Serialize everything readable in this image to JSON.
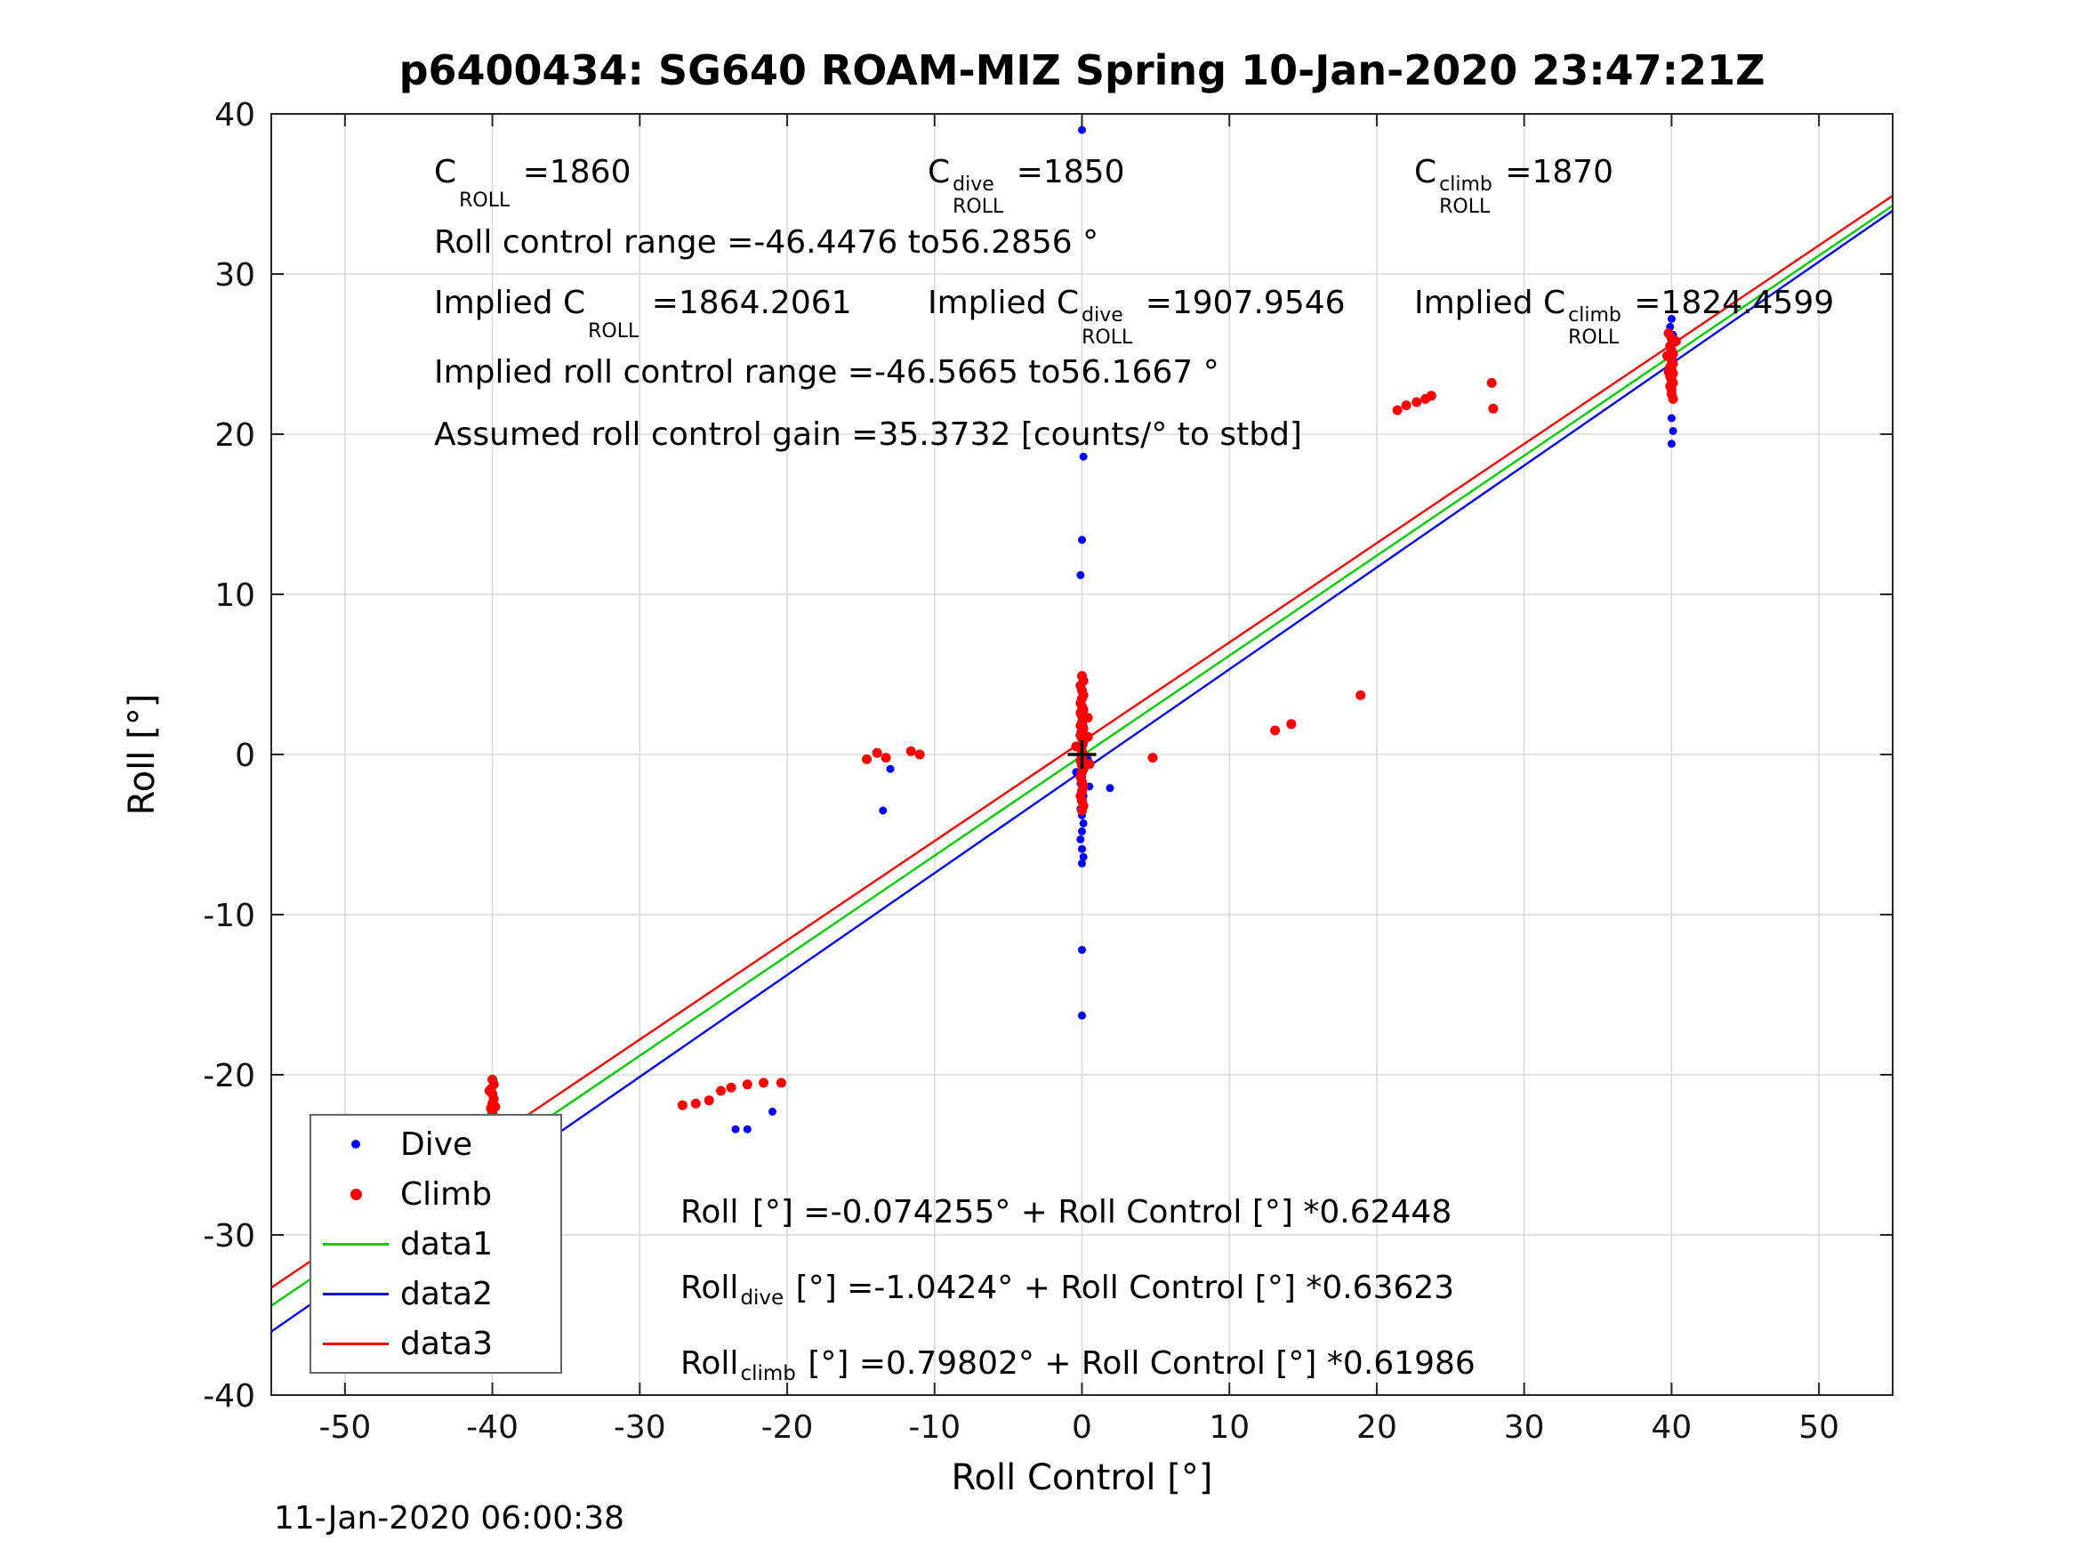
{
  "figure": {
    "title": "p6400434: SG640 ROAM-MIZ Spring 10-Jan-2020 23:47:21Z",
    "timestamp": "11-Jan-2020 06:00:38"
  },
  "annotations": {
    "row1": [
      {
        "pre": "C",
        "sup": "",
        "sub": "ROLL",
        "post": " =1860"
      },
      {
        "pre": "C",
        "sup": "dive",
        "sub": "ROLL",
        "post": " =1850"
      },
      {
        "pre": "C",
        "sup": "climb",
        "sub": "ROLL",
        "post": " =1870"
      }
    ],
    "row2": "Roll control range =-46.4476 to56.2856 °",
    "row3": [
      {
        "pre": "Implied C",
        "sup": "",
        "sub": "ROLL",
        "post": " =1864.2061"
      },
      {
        "pre": "Implied C",
        "sup": "dive",
        "sub": "ROLL",
        "post": " =1907.9546"
      },
      {
        "pre": "Implied C",
        "sup": "climb",
        "sub": "ROLL",
        "post": " =1824.4599"
      }
    ],
    "row4": "Implied roll control range =-46.5665 to56.1667 °",
    "row5": "Assumed roll control gain =35.3732 [counts/° to stbd]"
  },
  "equations": [
    {
      "pre": "Roll",
      "sub": "",
      "post": " [°] =-0.074255° + Roll Control [°] *0.62448"
    },
    {
      "pre": "Roll",
      "sub": "dive",
      "post": " [°] =-1.0424° + Roll Control [°] *0.63623"
    },
    {
      "pre": "Roll",
      "sub": "climb",
      "post": " [°] =0.79802° + Roll Control [°] *0.61986"
    }
  ],
  "legend": {
    "items": [
      {
        "label": "Dive",
        "marker": "dot",
        "color": "#0000ff",
        "size": 10
      },
      {
        "label": "Climb",
        "marker": "dot",
        "color": "#ff0000",
        "size": 13
      },
      {
        "label": "data1",
        "marker": "line",
        "color": "#00cc00",
        "size": 3
      },
      {
        "label": "data2",
        "marker": "line",
        "color": "#0000ff",
        "size": 3
      },
      {
        "label": "data3",
        "marker": "line",
        "color": "#ff0000",
        "size": 3
      }
    ]
  },
  "colors": {
    "dive": "#0000ff",
    "climb": "#ff0000",
    "data1": "#00cc00",
    "data2": "#0000ff",
    "data3": "#ff0000",
    "grid": "#d8d8d8",
    "axis": "#262626",
    "tick_label": "#141414"
  },
  "chart_data": {
    "type": "scatter",
    "title": "p6400434: SG640 ROAM-MIZ Spring 10-Jan-2020 23:47:21Z",
    "xlabel": "Roll Control [°]",
    "ylabel": "Roll [°]",
    "xlim": [
      -55,
      55
    ],
    "ylim": [
      -40,
      40
    ],
    "xticks": [
      -50,
      -40,
      -30,
      -20,
      -10,
      0,
      10,
      20,
      30,
      40,
      50
    ],
    "yticks": [
      -40,
      -30,
      -20,
      -10,
      0,
      10,
      20,
      30,
      40
    ],
    "grid": true,
    "legend_position": "bottom-left",
    "origin_marker": {
      "x": 0,
      "y": 0,
      "type": "plus",
      "color": "#000000"
    },
    "series": [
      {
        "name": "Dive",
        "type": "scatter",
        "color": "#0000ff",
        "marker_radius": 4.5,
        "points": [
          [
            -40,
            -21.2
          ],
          [
            -39.9,
            -21.7
          ],
          [
            -40.1,
            -22.1
          ],
          [
            -40,
            -22.5
          ],
          [
            -39.9,
            -22.9
          ],
          [
            -40,
            -23.3
          ],
          [
            -40.1,
            -23.7
          ],
          [
            -40,
            -24.1
          ],
          [
            -39.9,
            -24.5
          ],
          [
            -40,
            -24.9
          ],
          [
            -40.1,
            -25.3
          ],
          [
            -40,
            -25.7
          ],
          [
            -39.9,
            -26.1
          ],
          [
            -40,
            -26.5
          ],
          [
            -40,
            -26.9
          ],
          [
            -23.5,
            -23.4
          ],
          [
            -22.7,
            -23.4
          ],
          [
            -21.0,
            -22.3
          ],
          [
            -13.5,
            -3.5
          ],
          [
            -13.0,
            -0.9
          ],
          [
            0,
            39
          ],
          [
            0.1,
            18.6
          ],
          [
            0,
            13.4
          ],
          [
            -0.1,
            11.2
          ],
          [
            0,
            2.2
          ],
          [
            0.1,
            1.8
          ],
          [
            -0.1,
            1.4
          ],
          [
            0,
            1.0
          ],
          [
            0.1,
            0.6
          ],
          [
            0,
            0.2
          ],
          [
            -0.1,
            -0.2
          ],
          [
            0,
            -0.6
          ],
          [
            0.1,
            -1.0
          ],
          [
            0,
            -1.4
          ],
          [
            -0.1,
            -1.8
          ],
          [
            0,
            -2.2
          ],
          [
            0.1,
            -2.6
          ],
          [
            0,
            -3.0
          ],
          [
            -0.1,
            -3.4
          ],
          [
            0,
            -3.8
          ],
          [
            0.1,
            -4.3
          ],
          [
            0,
            -4.8
          ],
          [
            -0.1,
            -5.3
          ],
          [
            0,
            -5.9
          ],
          [
            0.1,
            -6.4
          ],
          [
            0,
            -6.8
          ],
          [
            0.4,
            -0.3
          ],
          [
            -0.4,
            -1.1
          ],
          [
            0.5,
            -2.0
          ],
          [
            1.9,
            -2.1
          ],
          [
            0,
            -12.2
          ],
          [
            0,
            -16.3
          ],
          [
            40,
            27.2
          ],
          [
            39.9,
            26.7
          ],
          [
            40.1,
            26.2
          ],
          [
            40,
            25.8
          ],
          [
            39.9,
            25.4
          ],
          [
            40,
            25.0
          ],
          [
            40.1,
            24.6
          ],
          [
            40,
            24.2
          ],
          [
            39.9,
            23.8
          ],
          [
            40,
            23.4
          ],
          [
            40,
            21.0
          ],
          [
            40.1,
            20.2
          ],
          [
            40,
            19.4
          ]
        ]
      },
      {
        "name": "Climb",
        "type": "scatter",
        "color": "#ff0000",
        "marker_radius": 5.5,
        "points": [
          [
            -40,
            -20.3
          ],
          [
            -39.9,
            -20.6
          ],
          [
            -40.1,
            -20.9
          ],
          [
            -40,
            -21.2
          ],
          [
            -39.9,
            -21.5
          ],
          [
            -40,
            -21.8
          ],
          [
            -40.1,
            -22.1
          ],
          [
            -40,
            -22.4
          ],
          [
            -39.9,
            -22.7
          ],
          [
            -40,
            -23.0
          ],
          [
            -40.1,
            -23.3
          ],
          [
            -40,
            -23.7
          ],
          [
            -40,
            -24.0
          ],
          [
            -40.2,
            -21.0
          ],
          [
            -39.8,
            -22.0
          ],
          [
            -27.1,
            -21.9
          ],
          [
            -26.2,
            -21.8
          ],
          [
            -25.3,
            -21.6
          ],
          [
            -24.5,
            -21.0
          ],
          [
            -23.8,
            -20.8
          ],
          [
            -22.7,
            -20.6
          ],
          [
            -21.6,
            -20.5
          ],
          [
            -20.4,
            -20.5
          ],
          [
            -14.6,
            -0.3
          ],
          [
            -13.9,
            0.1
          ],
          [
            -13.3,
            -0.2
          ],
          [
            -11.6,
            0.2
          ],
          [
            -11.0,
            0.0
          ],
          [
            0,
            4.9
          ],
          [
            0.1,
            4.6
          ],
          [
            -0.1,
            4.3
          ],
          [
            0,
            4.0
          ],
          [
            0.1,
            3.7
          ],
          [
            0,
            3.5
          ],
          [
            -0.1,
            3.2
          ],
          [
            0,
            3.0
          ],
          [
            0.1,
            2.8
          ],
          [
            -0.1,
            2.6
          ],
          [
            0,
            2.4
          ],
          [
            0.1,
            2.2
          ],
          [
            0,
            2.0
          ],
          [
            -0.1,
            1.8
          ],
          [
            0.1,
            1.6
          ],
          [
            0,
            1.4
          ],
          [
            -0.1,
            1.2
          ],
          [
            0,
            1.0
          ],
          [
            0.1,
            0.8
          ],
          [
            0,
            0.6
          ],
          [
            -0.1,
            0.4
          ],
          [
            0,
            0.2
          ],
          [
            0.1,
            0.0
          ],
          [
            0,
            -0.2
          ],
          [
            -0.1,
            -0.4
          ],
          [
            0,
            -0.7
          ],
          [
            0.1,
            -0.9
          ],
          [
            0,
            -1.1
          ],
          [
            -0.1,
            -1.4
          ],
          [
            0,
            -1.7
          ],
          [
            0.1,
            -2.0
          ],
          [
            0,
            -2.3
          ],
          [
            -0.1,
            -2.6
          ],
          [
            0,
            -2.9
          ],
          [
            0.1,
            -3.2
          ],
          [
            0,
            -3.5
          ],
          [
            0.4,
            1.1
          ],
          [
            -0.4,
            0.5
          ],
          [
            0.5,
            -0.6
          ],
          [
            0.4,
            2.3
          ],
          [
            4.8,
            -0.2
          ],
          [
            13.1,
            1.5
          ],
          [
            14.2,
            1.9
          ],
          [
            18.9,
            3.7
          ],
          [
            21.4,
            21.5
          ],
          [
            22.0,
            21.8
          ],
          [
            22.7,
            22.0
          ],
          [
            23.3,
            22.2
          ],
          [
            23.7,
            22.4
          ],
          [
            27.8,
            23.2
          ],
          [
            27.9,
            21.6
          ],
          [
            39.8,
            26.3
          ],
          [
            40,
            26.0
          ],
          [
            40.1,
            25.7
          ],
          [
            39.9,
            25.5
          ],
          [
            40,
            25.2
          ],
          [
            40.1,
            25.0
          ],
          [
            39.9,
            24.8
          ],
          [
            40,
            24.6
          ],
          [
            40.1,
            24.4
          ],
          [
            39.9,
            24.2
          ],
          [
            40,
            24.0
          ],
          [
            40.1,
            23.8
          ],
          [
            39.9,
            23.6
          ],
          [
            40,
            23.4
          ],
          [
            40.1,
            23.2
          ],
          [
            39.9,
            23.0
          ],
          [
            40,
            22.8
          ],
          [
            40,
            22.5
          ],
          [
            40.1,
            22.2
          ],
          [
            39.7,
            24.9
          ],
          [
            40.3,
            25.8
          ],
          [
            39.8,
            23.9
          ]
        ]
      },
      {
        "name": "data1",
        "type": "line",
        "color": "#00cc00",
        "intercept": -0.074255,
        "slope": 0.62448
      },
      {
        "name": "data2",
        "type": "line",
        "color": "#0000ff",
        "intercept": -1.0424,
        "slope": 0.63623
      },
      {
        "name": "data3",
        "type": "line",
        "color": "#ff0000",
        "intercept": 0.79802,
        "slope": 0.61986
      }
    ]
  }
}
